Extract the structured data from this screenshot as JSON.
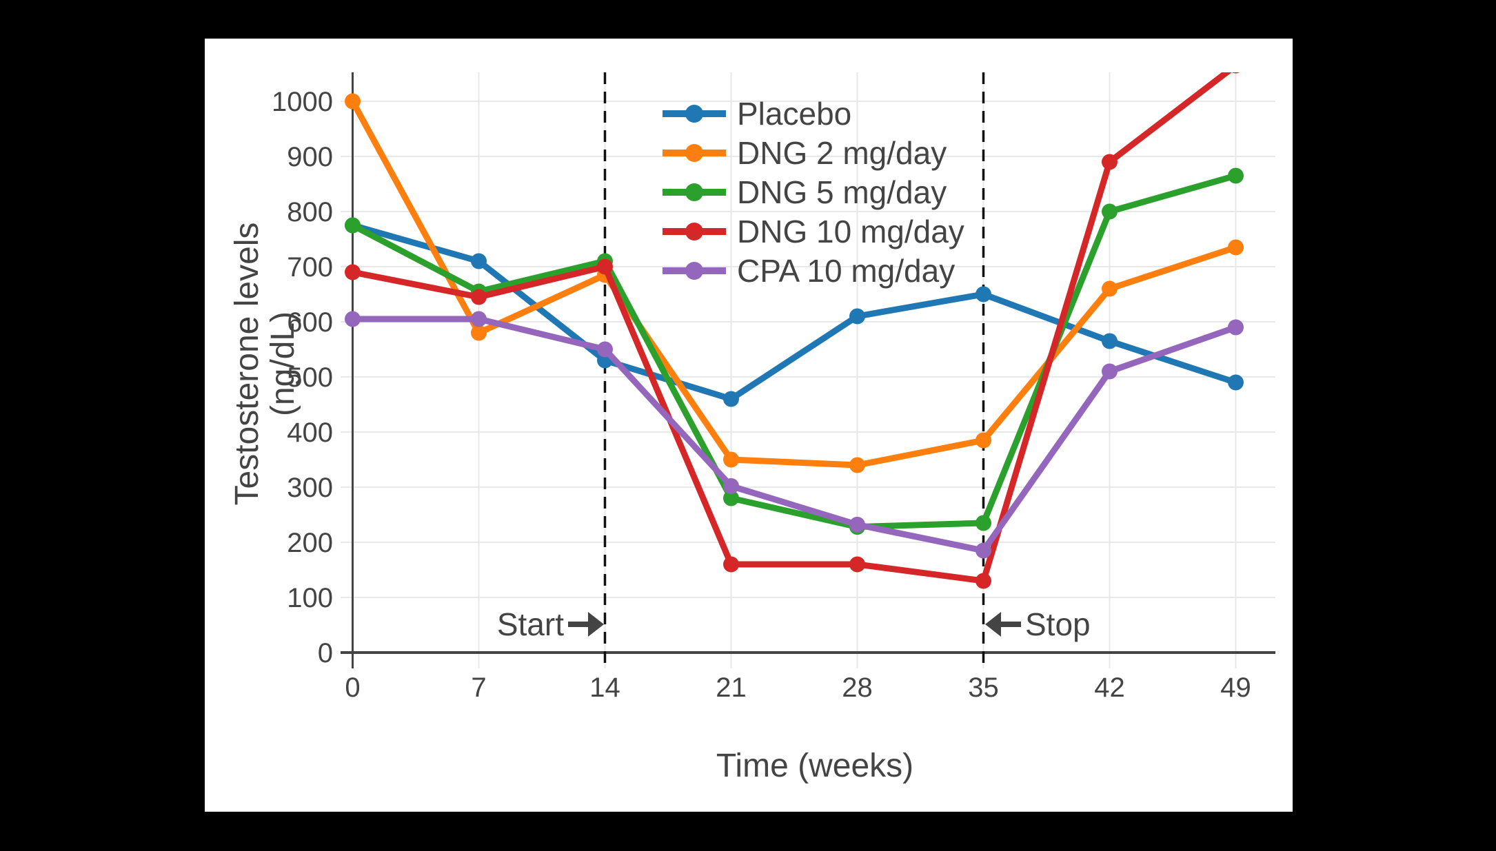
{
  "figure": {
    "outer_background": "#000000",
    "paper_background": "#ffffff",
    "text_color": "#444444",
    "grid_color": "#e8e8e8",
    "axis_color": "#444444",
    "event_line_color": "#111111"
  },
  "annotations": {
    "start": {
      "label": "Start",
      "week": 14,
      "arrow": "right"
    },
    "stop": {
      "label": "Stop",
      "week": 35,
      "arrow": "left"
    }
  },
  "chart_data": {
    "type": "line",
    "title": "",
    "xlabel": "Time (weeks)",
    "ylabel": "Testosterone levels (ng/dL)",
    "x": [
      0,
      7,
      14,
      21,
      28,
      35,
      42,
      49
    ],
    "xticks": [
      0,
      7,
      14,
      21,
      28,
      35,
      42,
      49
    ],
    "yticks": [
      0,
      100,
      200,
      300,
      400,
      500,
      600,
      700,
      800,
      900,
      1000
    ],
    "xlim": [
      0,
      51.2
    ],
    "ylim": [
      0,
      1052.5
    ],
    "grid": true,
    "legend_position": "inside-top-center",
    "series": [
      {
        "name": "Placebo",
        "color": "#1f77b4",
        "values": [
          775,
          710,
          530,
          460,
          610,
          650,
          565,
          490
        ]
      },
      {
        "name": "DNG 2 mg/day",
        "color": "#ff7f0e",
        "values": [
          1000,
          580,
          685,
          350,
          340,
          385,
          660,
          735
        ]
      },
      {
        "name": "DNG 5 mg/day",
        "color": "#2ca02c",
        "values": [
          775,
          655,
          710,
          280,
          228,
          235,
          800,
          865
        ]
      },
      {
        "name": "DNG 10 mg/day",
        "color": "#d62728",
        "values": [
          690,
          645,
          700,
          160,
          160,
          130,
          890,
          1065
        ]
      },
      {
        "name": "CPA 10 mg/day",
        "color": "#9467bd",
        "values": [
          605,
          605,
          550,
          302,
          232,
          185,
          510,
          590
        ]
      }
    ],
    "event_lines": [
      {
        "week": 14,
        "label": "Start"
      },
      {
        "week": 35,
        "label": "Stop"
      }
    ]
  }
}
